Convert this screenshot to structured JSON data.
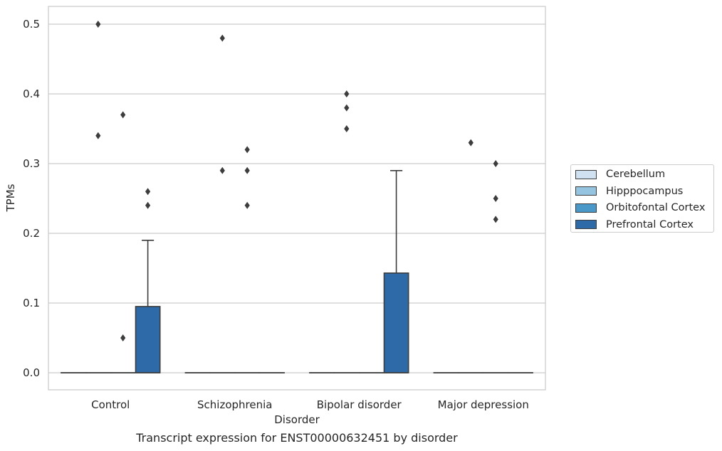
{
  "chart_data": {
    "type": "box",
    "xlabel": "Disorder",
    "ylabel": "TPMs",
    "ylim": [
      -0.025,
      0.525
    ],
    "yticks": [
      0.0,
      0.1,
      0.2,
      0.3,
      0.4,
      0.5
    ],
    "ytick_labels": [
      "0.0",
      "0.1",
      "0.2",
      "0.3",
      "0.4",
      "0.5"
    ],
    "grid": "horizontal",
    "legend_placement": "right",
    "categories": [
      "Control",
      "Schizophrenia",
      "Bipolar disorder",
      "Major depression"
    ],
    "series": [
      {
        "name": "Cerebellum",
        "color": "#d0e1f2",
        "boxes": [
          {
            "q1": 0,
            "median": 0,
            "q3": 0,
            "whisker_low": 0,
            "whisker_high": 0,
            "outliers": []
          },
          {
            "q1": 0,
            "median": 0,
            "q3": 0,
            "whisker_low": 0,
            "whisker_high": 0,
            "outliers": []
          },
          {
            "q1": 0,
            "median": 0,
            "q3": 0,
            "whisker_low": 0,
            "whisker_high": 0,
            "outliers": []
          },
          {
            "q1": 0,
            "median": 0,
            "q3": 0,
            "whisker_low": 0,
            "whisker_high": 0,
            "outliers": []
          }
        ]
      },
      {
        "name": "Hipppocampus",
        "color": "#94c4df",
        "boxes": [
          {
            "q1": 0,
            "median": 0,
            "q3": 0,
            "whisker_low": 0,
            "whisker_high": 0,
            "outliers": [
              0.5,
              0.34
            ]
          },
          {
            "q1": 0,
            "median": 0,
            "q3": 0,
            "whisker_low": 0,
            "whisker_high": 0,
            "outliers": [
              0.48,
              0.29
            ]
          },
          {
            "q1": 0,
            "median": 0,
            "q3": 0,
            "whisker_low": 0,
            "whisker_high": 0,
            "outliers": [
              0.4,
              0.38,
              0.35
            ]
          },
          {
            "q1": 0,
            "median": 0,
            "q3": 0,
            "whisker_low": 0,
            "whisker_high": 0,
            "outliers": [
              0.33
            ]
          }
        ]
      },
      {
        "name": "Orbitofontal Cortex",
        "color": "#4a98c9",
        "boxes": [
          {
            "q1": 0,
            "median": 0,
            "q3": 0,
            "whisker_low": 0,
            "whisker_high": 0,
            "outliers": [
              0.37,
              0.05
            ]
          },
          {
            "q1": 0,
            "median": 0,
            "q3": 0,
            "whisker_low": 0,
            "whisker_high": 0,
            "outliers": [
              0.32,
              0.29,
              0.24
            ]
          },
          {
            "q1": 0,
            "median": 0,
            "q3": 0,
            "whisker_low": 0,
            "whisker_high": 0,
            "outliers": []
          },
          {
            "q1": 0,
            "median": 0,
            "q3": 0,
            "whisker_low": 0,
            "whisker_high": 0,
            "outliers": [
              0.3,
              0.25,
              0.22
            ]
          }
        ]
      },
      {
        "name": "Prefrontal Cortex",
        "color": "#2e6aa8",
        "boxes": [
          {
            "q1": 0,
            "median": 0,
            "q3": 0.095,
            "whisker_low": 0,
            "whisker_high": 0.19,
            "outliers": [
              0.26,
              0.24
            ]
          },
          {
            "q1": 0,
            "median": 0,
            "q3": 0,
            "whisker_low": 0,
            "whisker_high": 0,
            "outliers": []
          },
          {
            "q1": 0,
            "median": 0,
            "q3": 0.143,
            "whisker_low": 0,
            "whisker_high": 0.29,
            "outliers": []
          },
          {
            "q1": 0,
            "median": 0,
            "q3": 0,
            "whisker_low": 0,
            "whisker_high": 0,
            "outliers": []
          }
        ]
      }
    ]
  },
  "caption": "Transcript expression for ENST00000632451 by disorder"
}
